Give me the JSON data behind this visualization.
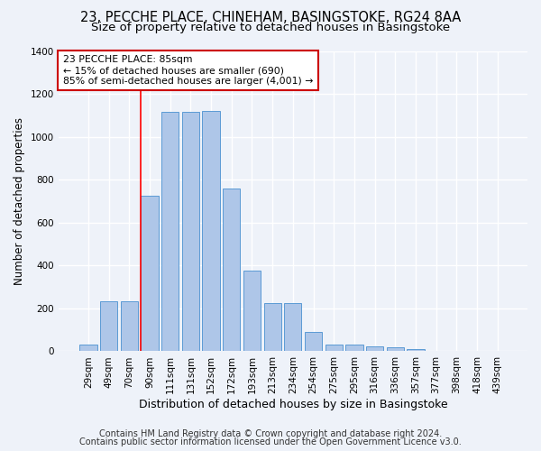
{
  "title1": "23, PECCHE PLACE, CHINEHAM, BASINGSTOKE, RG24 8AA",
  "title2": "Size of property relative to detached houses in Basingstoke",
  "xlabel": "Distribution of detached houses by size in Basingstoke",
  "ylabel": "Number of detached properties",
  "categories": [
    "29sqm",
    "49sqm",
    "70sqm",
    "90sqm",
    "111sqm",
    "131sqm",
    "152sqm",
    "172sqm",
    "193sqm",
    "213sqm",
    "234sqm",
    "254sqm",
    "275sqm",
    "295sqm",
    "316sqm",
    "336sqm",
    "357sqm",
    "377sqm",
    "398sqm",
    "418sqm",
    "439sqm"
  ],
  "values": [
    30,
    235,
    235,
    725,
    1115,
    1115,
    1120,
    760,
    375,
    225,
    225,
    90,
    30,
    30,
    25,
    20,
    10,
    0,
    0,
    0,
    0
  ],
  "bar_color": "#aec6e8",
  "bar_edge_color": "#5b9bd5",
  "red_line_x": 2.58,
  "annotation_text": "23 PECCHE PLACE: 85sqm\n← 15% of detached houses are smaller (690)\n85% of semi-detached houses are larger (4,001) →",
  "annotation_box_color": "#ffffff",
  "annotation_box_edge_color": "#cc0000",
  "footnote1": "Contains HM Land Registry data © Crown copyright and database right 2024.",
  "footnote2": "Contains public sector information licensed under the Open Government Licence v3.0.",
  "ylim": [
    0,
    1400
  ],
  "yticks": [
    0,
    200,
    400,
    600,
    800,
    1000,
    1200,
    1400
  ],
  "bg_color": "#eef2f9",
  "grid_color": "#ffffff",
  "title1_fontsize": 10.5,
  "title2_fontsize": 9.5,
  "xlabel_fontsize": 9,
  "ylabel_fontsize": 8.5,
  "tick_fontsize": 7.5,
  "footnote_fontsize": 7
}
